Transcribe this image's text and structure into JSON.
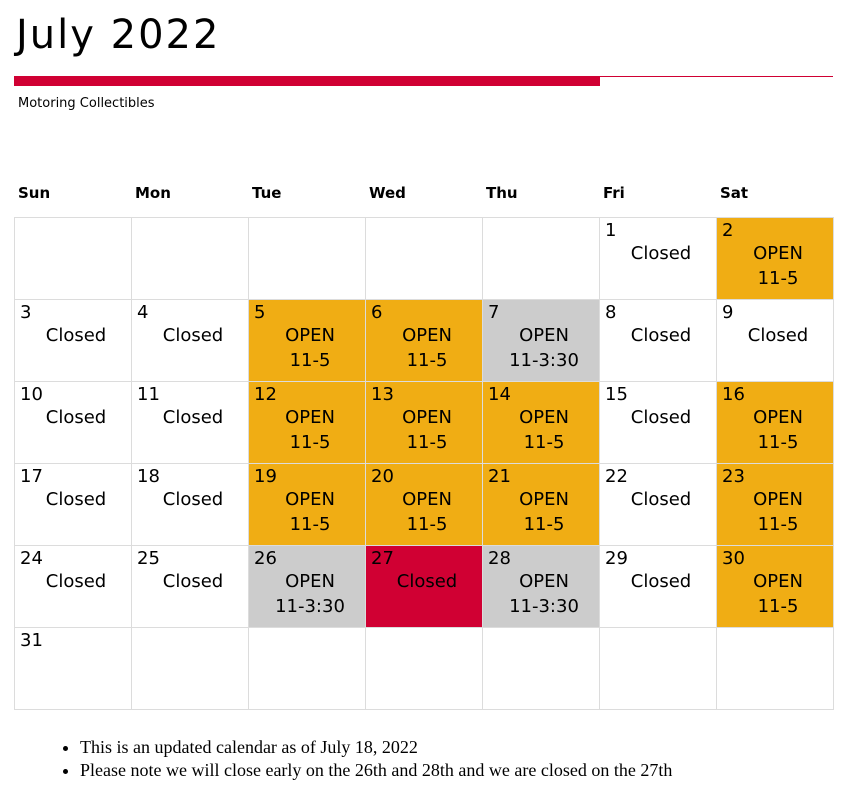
{
  "header": {
    "title": "July 2022",
    "subtitle": "Motoring Collectibles"
  },
  "colors": {
    "open": "#f0ad14",
    "early": "#cccccc",
    "closed_special": "#d00033",
    "accent": "#d00033"
  },
  "weekdays": [
    "Sun",
    "Mon",
    "Tue",
    "Wed",
    "Thu",
    "Fri",
    "Sat"
  ],
  "weeks": [
    [
      {},
      {},
      {},
      {},
      {},
      {
        "day": "1",
        "lines": [
          "Closed"
        ]
      },
      {
        "day": "2",
        "lines": [
          "OPEN",
          "11-5"
        ],
        "status": "open"
      }
    ],
    [
      {
        "day": "3",
        "lines": [
          "Closed"
        ]
      },
      {
        "day": "4",
        "lines": [
          "Closed"
        ]
      },
      {
        "day": "5",
        "lines": [
          "OPEN",
          "11-5"
        ],
        "status": "open"
      },
      {
        "day": "6",
        "lines": [
          "OPEN",
          "11-5"
        ],
        "status": "open"
      },
      {
        "day": "7",
        "lines": [
          "OPEN",
          "11-3:30"
        ],
        "status": "early"
      },
      {
        "day": "8",
        "lines": [
          "Closed"
        ]
      },
      {
        "day": "9",
        "lines": [
          "Closed"
        ]
      }
    ],
    [
      {
        "day": "10",
        "lines": [
          "Closed"
        ]
      },
      {
        "day": "11",
        "lines": [
          "Closed"
        ]
      },
      {
        "day": "12",
        "lines": [
          "OPEN",
          "11-5"
        ],
        "status": "open"
      },
      {
        "day": "13",
        "lines": [
          "OPEN",
          "11-5"
        ],
        "status": "open"
      },
      {
        "day": "14",
        "lines": [
          "OPEN",
          "11-5"
        ],
        "status": "open"
      },
      {
        "day": "15",
        "lines": [
          "Closed"
        ]
      },
      {
        "day": "16",
        "lines": [
          "OPEN",
          "11-5"
        ],
        "status": "open"
      }
    ],
    [
      {
        "day": "17",
        "lines": [
          "Closed"
        ]
      },
      {
        "day": "18",
        "lines": [
          "Closed"
        ]
      },
      {
        "day": "19",
        "lines": [
          "OPEN",
          "11-5"
        ],
        "status": "open"
      },
      {
        "day": "20",
        "lines": [
          "OPEN",
          "11-5"
        ],
        "status": "open"
      },
      {
        "day": "21",
        "lines": [
          "OPEN",
          "11-5"
        ],
        "status": "open"
      },
      {
        "day": "22",
        "lines": [
          "Closed"
        ]
      },
      {
        "day": "23",
        "lines": [
          "OPEN",
          "11-5"
        ],
        "status": "open"
      }
    ],
    [
      {
        "day": "24",
        "lines": [
          "Closed"
        ]
      },
      {
        "day": "25",
        "lines": [
          "Closed"
        ]
      },
      {
        "day": "26",
        "lines": [
          "OPEN",
          "11-3:30"
        ],
        "status": "early"
      },
      {
        "day": "27",
        "lines": [
          "Closed"
        ],
        "status": "closed_special"
      },
      {
        "day": "28",
        "lines": [
          "OPEN",
          "11-3:30"
        ],
        "status": "early"
      },
      {
        "day": "29",
        "lines": [
          "Closed"
        ]
      },
      {
        "day": "30",
        "lines": [
          "OPEN",
          "11-5"
        ],
        "status": "open"
      }
    ],
    [
      {
        "day": "31",
        "lines": []
      },
      {},
      {},
      {},
      {},
      {},
      {}
    ]
  ],
  "notes": [
    "This is an updated calendar as of July 18, 2022",
    "Please note we will close early on the 26th and 28th and we are closed on the 27th"
  ]
}
